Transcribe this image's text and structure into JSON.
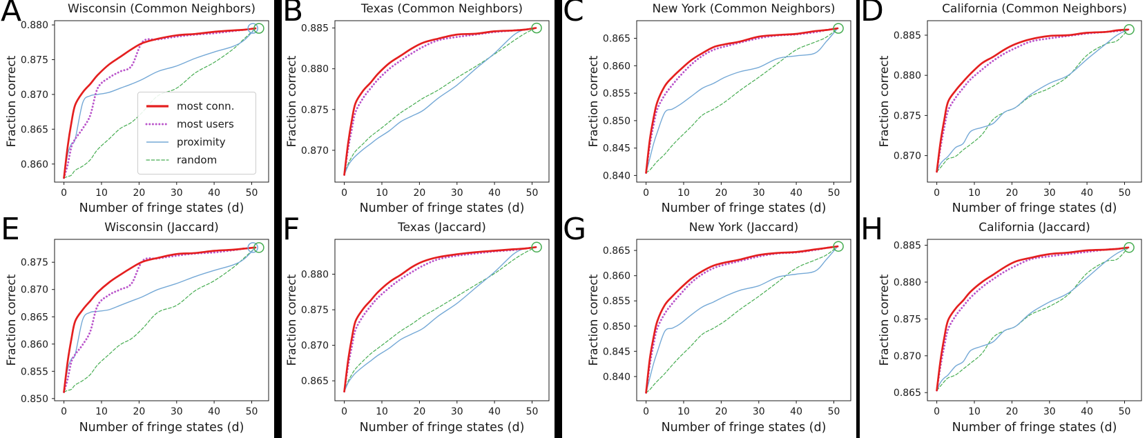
{
  "figure": {
    "xlabel": "Number of fringe states (d)",
    "ylabel": "Fraction correct",
    "x_ticks": [
      0,
      10,
      20,
      30,
      40,
      50
    ],
    "xlim": [
      -2.5,
      54.5
    ],
    "x": [
      0,
      1,
      2,
      3,
      5,
      7,
      9,
      12,
      15,
      18,
      21,
      25,
      30,
      35,
      40,
      45,
      48,
      51
    ],
    "background_color": "#ffffff",
    "divider_color": "#000000",
    "axis_color": "#1a1a1a",
    "legend_border_color": "#cccccc",
    "series_styles": [
      {
        "key": "most_conn",
        "label": "most conn.",
        "color": "#e41f1f",
        "width": 2.7,
        "dash": ""
      },
      {
        "key": "most_users",
        "label": "most users",
        "color": "#ba55cb",
        "width": 2.9,
        "dash": "0.1 4.6"
      },
      {
        "key": "proximity",
        "label": "proximity",
        "color": "#74a8d6",
        "width": 1.4,
        "dash": ""
      },
      {
        "key": "random",
        "label": "random",
        "color": "#45ac50",
        "width": 1.2,
        "dash": "4.5 2.8"
      }
    ]
  },
  "chart_data": [
    {
      "type": "line",
      "panel_label": "A",
      "title": "Wisconsin (Common Neighbors)",
      "xlabel": "Number of fringe states (d)",
      "ylabel": "Fraction correct",
      "ylim": [
        0.8574,
        0.8806
      ],
      "y_ticks": [
        0.86,
        0.865,
        0.87,
        0.875,
        0.88
      ],
      "series": {
        "most_conn": [
          0.858,
          0.8625,
          0.866,
          0.8685,
          0.8703,
          0.8715,
          0.8728,
          0.8743,
          0.8754,
          0.8765,
          0.8774,
          0.878,
          0.8785,
          0.8787,
          0.879,
          0.8792,
          0.8793,
          0.8795
        ],
        "most_users": [
          0.858,
          0.8599,
          0.8625,
          0.8636,
          0.8651,
          0.867,
          0.8709,
          0.8724,
          0.8733,
          0.8741,
          0.8776,
          0.8779,
          0.8783,
          0.8786,
          0.8788,
          0.8791,
          0.8793,
          0.8795
        ],
        "proximity": [
          0.858,
          0.8614,
          0.8629,
          0.8636,
          0.8688,
          0.8698,
          0.87,
          0.8703,
          0.8709,
          0.8715,
          0.8722,
          0.8733,
          0.8741,
          0.8752,
          0.8761,
          0.8769,
          0.8778,
          0.8795
        ],
        "random": [
          0.858,
          0.8582,
          0.8584,
          0.8591,
          0.8597,
          0.8606,
          0.8621,
          0.8636,
          0.8651,
          0.866,
          0.8675,
          0.8698,
          0.8709,
          0.8731,
          0.8746,
          0.8765,
          0.878,
          0.8795
        ]
      },
      "markers": [
        {
          "series": "proximity",
          "x": 50.3,
          "y": 0.8795
        },
        {
          "series": "random",
          "x": 51.9,
          "y": 0.8795
        }
      ]
    },
    {
      "type": "line",
      "panel_label": "B",
      "title": "Texas (Common Neighbors)",
      "xlabel": "Number of fringe states (d)",
      "ylabel": "Fraction correct",
      "ylim": [
        0.8661,
        0.8859
      ],
      "y_ticks": [
        0.87,
        0.875,
        0.88,
        0.885
      ],
      "series": {
        "most_conn": [
          0.867,
          0.8708,
          0.8737,
          0.8758,
          0.8773,
          0.8783,
          0.8794,
          0.8807,
          0.8816,
          0.8825,
          0.8832,
          0.8837,
          0.8842,
          0.8843,
          0.8846,
          0.8847,
          0.8848,
          0.885
        ],
        "most_users": [
          0.867,
          0.8701,
          0.8726,
          0.8747,
          0.8764,
          0.8776,
          0.8787,
          0.88,
          0.881,
          0.8819,
          0.8827,
          0.8835,
          0.8839,
          0.8842,
          0.8845,
          0.8847,
          0.8848,
          0.885
        ],
        "proximity": [
          0.867,
          0.8681,
          0.8688,
          0.8693,
          0.8701,
          0.8708,
          0.8715,
          0.8724,
          0.8735,
          0.8742,
          0.8749,
          0.8764,
          0.878,
          0.88,
          0.8819,
          0.8841,
          0.8848,
          0.885
        ],
        "random": [
          0.867,
          0.8683,
          0.8692,
          0.8699,
          0.8708,
          0.8717,
          0.8724,
          0.8735,
          0.8746,
          0.8755,
          0.8764,
          0.8774,
          0.8789,
          0.8803,
          0.8818,
          0.8834,
          0.8843,
          0.885
        ]
      },
      "markers": [
        {
          "series": "random",
          "x": 51.2,
          "y": 0.885
        }
      ]
    },
    {
      "type": "line",
      "panel_label": "C",
      "title": "New York (Common Neighbors)",
      "xlabel": "Number of fringe states (d)",
      "ylabel": "Fraction correct",
      "ylim": [
        0.8388,
        0.8682
      ],
      "y_ticks": [
        0.84,
        0.845,
        0.85,
        0.855,
        0.86,
        0.865
      ],
      "series": {
        "most_conn": [
          0.8405,
          0.8465,
          0.8505,
          0.8534,
          0.8563,
          0.8579,
          0.8592,
          0.861,
          0.8623,
          0.8634,
          0.8639,
          0.8644,
          0.8653,
          0.8656,
          0.8658,
          0.8663,
          0.8665,
          0.8668
        ],
        "most_users": [
          0.8405,
          0.8455,
          0.8492,
          0.8521,
          0.8547,
          0.8565,
          0.8581,
          0.8602,
          0.8618,
          0.8629,
          0.8635,
          0.8642,
          0.865,
          0.8655,
          0.8657,
          0.8661,
          0.8665,
          0.8668
        ],
        "proximity": [
          0.8405,
          0.8431,
          0.8458,
          0.8479,
          0.8515,
          0.8521,
          0.8529,
          0.8544,
          0.8559,
          0.8568,
          0.8579,
          0.8589,
          0.8597,
          0.8613,
          0.8618,
          0.8623,
          0.8644,
          0.8668
        ],
        "random": [
          0.8405,
          0.841,
          0.8418,
          0.8426,
          0.8439,
          0.8455,
          0.8469,
          0.8489,
          0.851,
          0.8521,
          0.8534,
          0.8555,
          0.8579,
          0.8604,
          0.8629,
          0.8643,
          0.8652,
          0.8668
        ]
      },
      "markers": [
        {
          "series": "random",
          "x": 51.2,
          "y": 0.8668
        }
      ]
    },
    {
      "type": "line",
      "panel_label": "D",
      "title": "California (Common Neighbors)",
      "xlabel": "Number of fringe states (d)",
      "ylabel": "Fraction correct",
      "ylim": [
        0.8667,
        0.8868
      ],
      "y_ticks": [
        0.87,
        0.875,
        0.88,
        0.885
      ],
      "series": {
        "most_conn": [
          0.868,
          0.8717,
          0.8745,
          0.8767,
          0.8781,
          0.8792,
          0.8802,
          0.8815,
          0.8823,
          0.8832,
          0.8839,
          0.8845,
          0.8849,
          0.885,
          0.8853,
          0.8854,
          0.8856,
          0.8857
        ],
        "most_users": [
          0.868,
          0.871,
          0.8735,
          0.8756,
          0.8772,
          0.8784,
          0.8795,
          0.8807,
          0.8818,
          0.8827,
          0.8834,
          0.8842,
          0.8846,
          0.8849,
          0.8852,
          0.8854,
          0.8855,
          0.8857
        ],
        "proximity": [
          0.868,
          0.869,
          0.8695,
          0.8699,
          0.871,
          0.8715,
          0.873,
          0.8735,
          0.874,
          0.8754,
          0.876,
          0.8776,
          0.879,
          0.88,
          0.882,
          0.8839,
          0.885,
          0.8857
        ],
        "random": [
          0.868,
          0.8685,
          0.8691,
          0.8696,
          0.8699,
          0.8707,
          0.8714,
          0.8726,
          0.8745,
          0.8754,
          0.876,
          0.8774,
          0.8784,
          0.8799,
          0.8825,
          0.8839,
          0.8843,
          0.8857
        ]
      },
      "markers": [
        {
          "series": "random",
          "x": 51.2,
          "y": 0.8857
        }
      ]
    },
    {
      "type": "line",
      "panel_label": "E",
      "title": "Wisconsin (Jaccard)",
      "xlabel": "Number of fringe states (d)",
      "ylabel": "Fraction correct",
      "ylim": [
        0.8496,
        0.8792
      ],
      "y_ticks": [
        0.85,
        0.855,
        0.86,
        0.865,
        0.87,
        0.875
      ],
      "series": {
        "most_conn": [
          0.8512,
          0.8568,
          0.861,
          0.8642,
          0.8663,
          0.8679,
          0.8695,
          0.8713,
          0.8727,
          0.874,
          0.8751,
          0.8758,
          0.8765,
          0.8767,
          0.8771,
          0.8773,
          0.8775,
          0.8777
        ],
        "most_users": [
          0.8512,
          0.8536,
          0.8568,
          0.8581,
          0.8599,
          0.8623,
          0.8671,
          0.869,
          0.87,
          0.8711,
          0.8753,
          0.8757,
          0.8762,
          0.8766,
          0.8768,
          0.8772,
          0.8775,
          0.8777
        ],
        "proximity": [
          0.8512,
          0.8554,
          0.8573,
          0.8581,
          0.8645,
          0.8658,
          0.866,
          0.8663,
          0.8671,
          0.8679,
          0.8687,
          0.87,
          0.8711,
          0.8724,
          0.8735,
          0.8745,
          0.8756,
          0.8777
        ],
        "random": [
          0.8512,
          0.8515,
          0.8517,
          0.8525,
          0.8533,
          0.8544,
          0.8562,
          0.8581,
          0.8599,
          0.861,
          0.8629,
          0.8658,
          0.8671,
          0.8698,
          0.8716,
          0.874,
          0.8758,
          0.8777
        ]
      },
      "markers": [
        {
          "series": "proximity",
          "x": 50.3,
          "y": 0.8777
        },
        {
          "series": "random",
          "x": 51.9,
          "y": 0.8777
        }
      ]
    },
    {
      "type": "line",
      "panel_label": "F",
      "title": "Texas (Jaccard)",
      "xlabel": "Number of fringe states (d)",
      "ylabel": "Fraction correct",
      "ylim": [
        0.8622,
        0.8849
      ],
      "y_ticks": [
        0.865,
        0.87,
        0.875,
        0.88
      ],
      "series": {
        "most_conn": [
          0.8635,
          0.8678,
          0.871,
          0.8734,
          0.8751,
          0.8763,
          0.8775,
          0.8789,
          0.8799,
          0.881,
          0.8818,
          0.8824,
          0.8828,
          0.8831,
          0.8833,
          0.8835,
          0.8836,
          0.8838
        ],
        "most_users": [
          0.8635,
          0.867,
          0.8698,
          0.8722,
          0.8741,
          0.8755,
          0.8767,
          0.8781,
          0.8793,
          0.8803,
          0.8812,
          0.8821,
          0.8826,
          0.8829,
          0.8832,
          0.8834,
          0.8836,
          0.8838
        ],
        "proximity": [
          0.8635,
          0.8647,
          0.8655,
          0.8661,
          0.867,
          0.8678,
          0.8686,
          0.8696,
          0.8708,
          0.8716,
          0.8724,
          0.8741,
          0.8759,
          0.8781,
          0.8803,
          0.8828,
          0.8836,
          0.8838
        ],
        "random": [
          0.8635,
          0.8649,
          0.8659,
          0.8667,
          0.8678,
          0.8688,
          0.8696,
          0.8708,
          0.872,
          0.873,
          0.8741,
          0.8753,
          0.8769,
          0.8785,
          0.8801,
          0.882,
          0.883,
          0.8838
        ]
      },
      "markers": [
        {
          "series": "random",
          "x": 51.2,
          "y": 0.8838
        }
      ]
    },
    {
      "type": "line",
      "panel_label": "G",
      "title": "New York (Jaccard)",
      "xlabel": "Number of fringe states (d)",
      "ylabel": "Fraction correct",
      "ylim": [
        0.8352,
        0.8672
      ],
      "y_ticks": [
        0.84,
        0.845,
        0.85,
        0.855,
        0.86,
        0.865
      ],
      "series": {
        "most_conn": [
          0.8368,
          0.8435,
          0.8478,
          0.851,
          0.8542,
          0.8559,
          0.8574,
          0.8594,
          0.8609,
          0.862,
          0.8626,
          0.8632,
          0.8641,
          0.8645,
          0.8647,
          0.8652,
          0.8655,
          0.8658
        ],
        "most_users": [
          0.8368,
          0.8423,
          0.8464,
          0.8496,
          0.8525,
          0.8545,
          0.8562,
          0.8586,
          0.8603,
          0.8615,
          0.8622,
          0.8629,
          0.8638,
          0.8644,
          0.8646,
          0.8651,
          0.8655,
          0.8658
        ],
        "proximity": [
          0.8368,
          0.8397,
          0.8426,
          0.8449,
          0.849,
          0.8496,
          0.8504,
          0.8522,
          0.8538,
          0.8548,
          0.8559,
          0.8571,
          0.858,
          0.8597,
          0.8603,
          0.8609,
          0.8632,
          0.8658
        ],
        "random": [
          0.8368,
          0.8374,
          0.8383,
          0.8391,
          0.8406,
          0.8423,
          0.8439,
          0.8461,
          0.8484,
          0.8496,
          0.851,
          0.8533,
          0.8559,
          0.8587,
          0.8615,
          0.8631,
          0.8641,
          0.8658
        ]
      },
      "markers": [
        {
          "series": "random",
          "x": 51.2,
          "y": 0.8658
        }
      ]
    },
    {
      "type": "line",
      "panel_label": "H",
      "title": "California (Jaccard)",
      "xlabel": "Number of fringe states (d)",
      "ylabel": "Fraction correct",
      "ylim": [
        0.8639,
        0.8858
      ],
      "y_ticks": [
        0.865,
        0.87,
        0.875,
        0.88,
        0.885
      ],
      "series": {
        "most_conn": [
          0.8653,
          0.8694,
          0.8725,
          0.8748,
          0.8764,
          0.8775,
          0.8787,
          0.88,
          0.881,
          0.882,
          0.8828,
          0.8833,
          0.8838,
          0.884,
          0.8843,
          0.8844,
          0.8845,
          0.8847
        ],
        "most_users": [
          0.8653,
          0.8686,
          0.8713,
          0.8736,
          0.8754,
          0.8767,
          0.8779,
          0.8793,
          0.8804,
          0.8814,
          0.8822,
          0.8831,
          0.8835,
          0.8838,
          0.8841,
          0.8844,
          0.8845,
          0.8847
        ],
        "proximity": [
          0.8653,
          0.8664,
          0.867,
          0.8674,
          0.8686,
          0.8692,
          0.8707,
          0.8713,
          0.8719,
          0.8734,
          0.874,
          0.8758,
          0.8773,
          0.8785,
          0.8806,
          0.8828,
          0.8839,
          0.8847
        ],
        "random": [
          0.8653,
          0.8659,
          0.8665,
          0.867,
          0.8674,
          0.8682,
          0.869,
          0.8703,
          0.8725,
          0.8734,
          0.874,
          0.8756,
          0.8767,
          0.8783,
          0.8812,
          0.8828,
          0.8831,
          0.8847
        ]
      },
      "markers": [
        {
          "series": "random",
          "x": 51.2,
          "y": 0.8847
        }
      ]
    }
  ]
}
